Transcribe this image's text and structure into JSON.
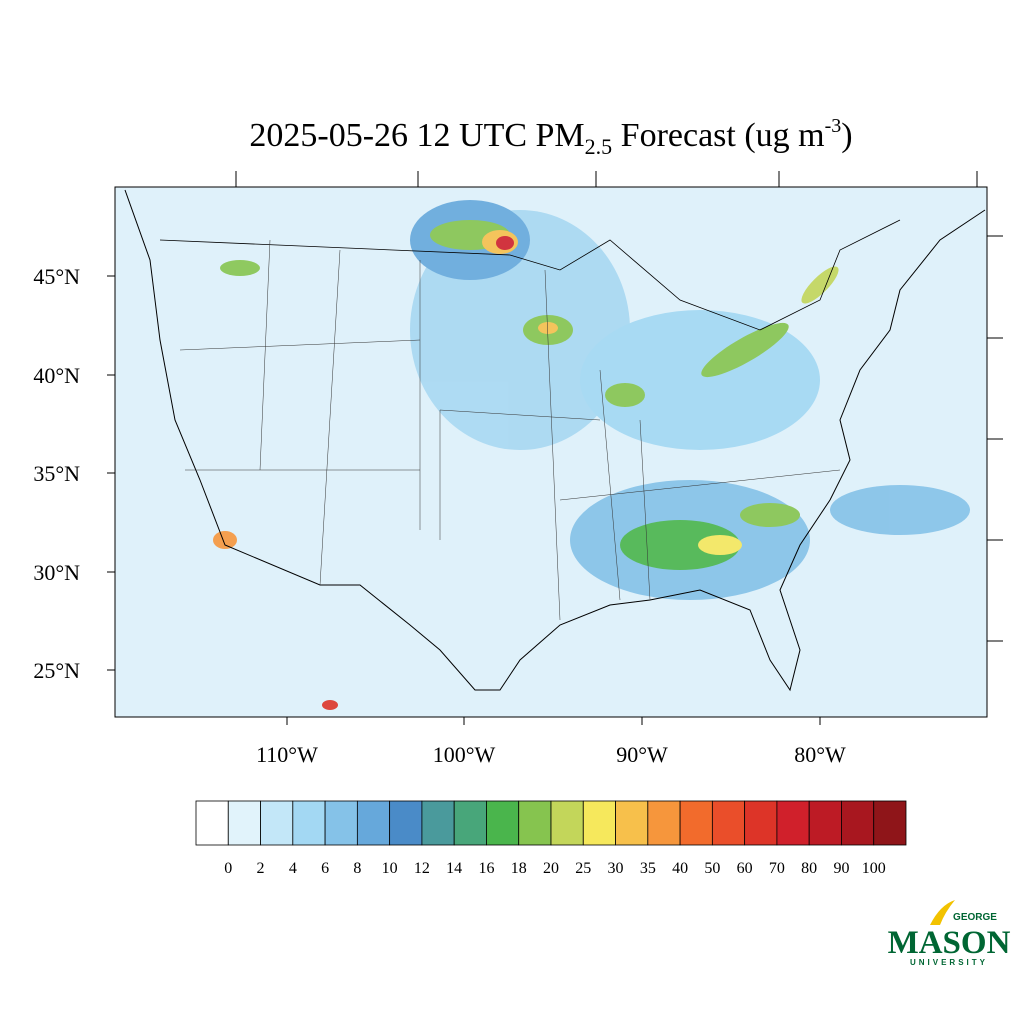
{
  "title": {
    "main": "2025-05-26 12 UTC PM",
    "subscript": "2.5",
    "middle": " Forecast (ug m",
    "superscript": "-3",
    "end": ")"
  },
  "latitude_labels": [
    "45°N",
    "40°N",
    "35°N",
    "30°N",
    "25°N"
  ],
  "longitude_labels": [
    "110°W",
    "100°W",
    "90°W",
    "80°W"
  ],
  "colorbar": {
    "colors": [
      "#ffffff",
      "#e1f3fb",
      "#c3e7f8",
      "#a3d8f3",
      "#85c2e8",
      "#66a8db",
      "#4a8bc8",
      "#4a9a9c",
      "#48a67a",
      "#4ab54c",
      "#86c44f",
      "#c3d65a",
      "#f6e85c",
      "#f7c04b",
      "#f6963c",
      "#f26b2c",
      "#ea4e2a",
      "#dd3428",
      "#d0202b",
      "#bd1b25",
      "#a8171f",
      "#8f1519"
    ],
    "labels": [
      "0",
      "2",
      "4",
      "6",
      "8",
      "10",
      "12",
      "14",
      "16",
      "18",
      "20",
      "25",
      "30",
      "35",
      "40",
      "50",
      "60",
      "70",
      "80",
      "90",
      "100"
    ]
  },
  "logo": {
    "top": "GEORGE",
    "main": "MASON",
    "bottom": "UNIVERSITY"
  }
}
